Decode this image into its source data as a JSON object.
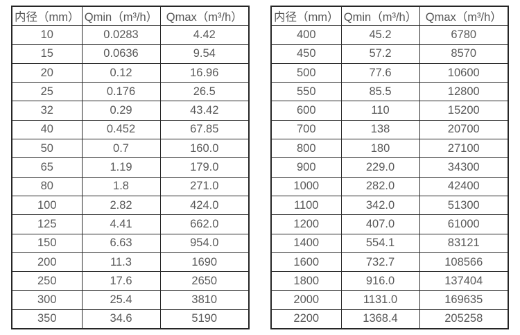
{
  "colors": {
    "background": "#ffffff",
    "border": "#262626",
    "text": "#595959"
  },
  "tables": [
    {
      "name": "flow-rate-table-small-diameters",
      "headers": [
        "内径（mm）",
        "Qmin（m³/h）",
        "Qmax（m³/h）"
      ],
      "rows": [
        [
          "10",
          "0.0283",
          "4.42"
        ],
        [
          "15",
          "0.0636",
          "9.54"
        ],
        [
          "20",
          "0.12",
          "16.96"
        ],
        [
          "25",
          "0.176",
          "26.5"
        ],
        [
          "32",
          "0.29",
          "43.42"
        ],
        [
          "40",
          "0.452",
          "67.85"
        ],
        [
          "50",
          "0.7",
          "160.0"
        ],
        [
          "65",
          "1.19",
          "179.0"
        ],
        [
          "80",
          "1.8",
          "271.0"
        ],
        [
          "100",
          "2.82",
          "424.0"
        ],
        [
          "125",
          "4.41",
          "662.0"
        ],
        [
          "150",
          "6.63",
          "954.0"
        ],
        [
          "200",
          "11.3",
          "1690"
        ],
        [
          "250",
          "17.6",
          "2650"
        ],
        [
          "300",
          "25.4",
          "3810"
        ],
        [
          "350",
          "34.6",
          "5190"
        ]
      ]
    },
    {
      "name": "flow-rate-table-large-diameters",
      "headers": [
        "内径（mm）",
        "Qmin（m³/h）",
        "Qmax（m³/h）"
      ],
      "rows": [
        [
          "400",
          "45.2",
          "6780"
        ],
        [
          "450",
          "57.2",
          "8570"
        ],
        [
          "500",
          "77.6",
          "10600"
        ],
        [
          "550",
          "85.5",
          "12800"
        ],
        [
          "600",
          "110",
          "15200"
        ],
        [
          "700",
          "138",
          "20700"
        ],
        [
          "800",
          "180",
          "27100"
        ],
        [
          "900",
          "229.0",
          "34300"
        ],
        [
          "1000",
          "282.0",
          "42400"
        ],
        [
          "1100",
          "342.0",
          "51300"
        ],
        [
          "1200",
          "407.0",
          "61000"
        ],
        [
          "1400",
          "554.1",
          "83121"
        ],
        [
          "1600",
          "732.7",
          "108566"
        ],
        [
          "1800",
          "916.0",
          "137404"
        ],
        [
          "2000",
          "1131.0",
          "169635"
        ],
        [
          "2200",
          "1368.4",
          "205258"
        ]
      ]
    }
  ]
}
